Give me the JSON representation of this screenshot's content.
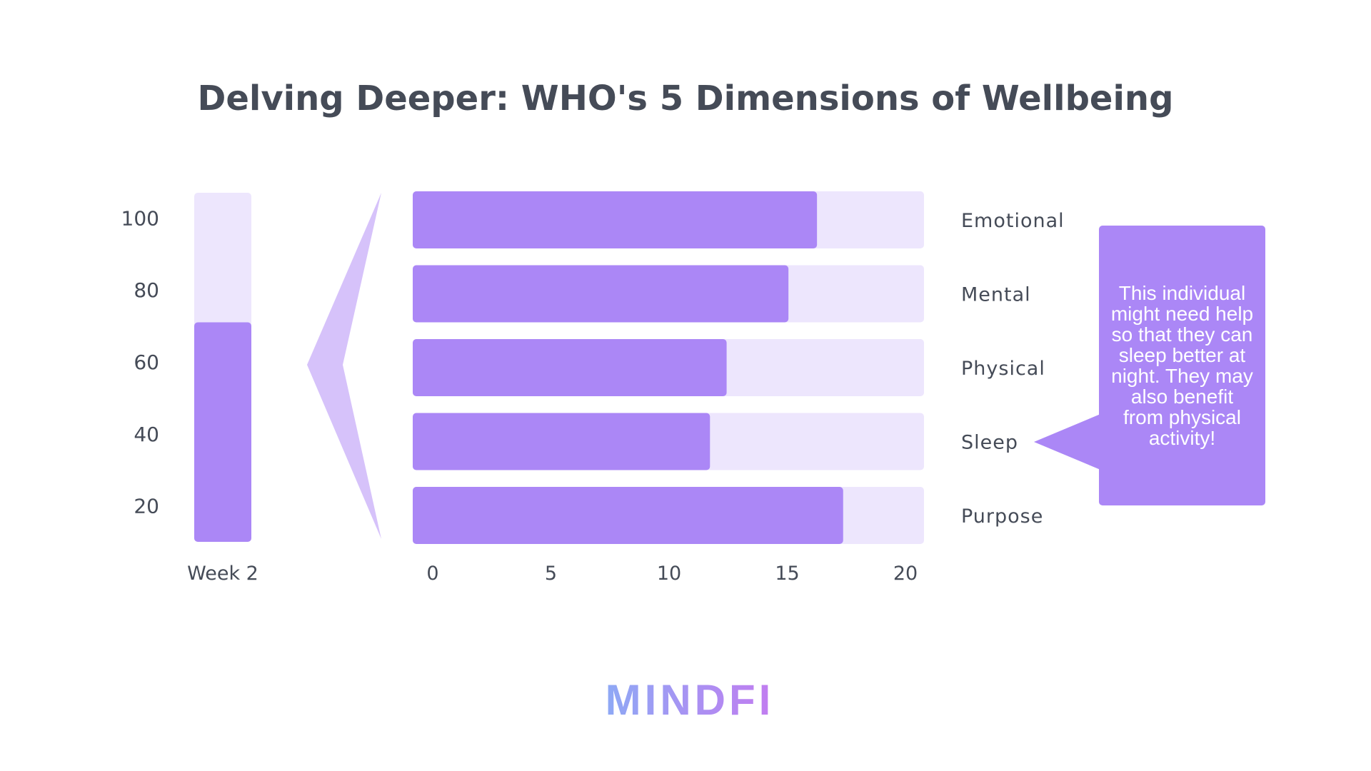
{
  "colors": {
    "bar_fill": "#ab87f6",
    "bar_track": "#ede6fd",
    "wedge": "#d6c2fa",
    "text": "#454b57",
    "logo_start": "#8ea9f5",
    "logo_end": "#c27cf0"
  },
  "title": "Delving Deeper: WHO's 5 Dimensions of Wellbeing",
  "callout": {
    "text": "This individual might need help so that they can sleep better at night. They may also benefit from physical activity!",
    "points_to": "Sleep"
  },
  "logo": {
    "text": "MINDFI"
  },
  "chart_data": [
    {
      "type": "bar",
      "orientation": "vertical",
      "categories": [
        "Week 2"
      ],
      "values": [
        71
      ],
      "ylim": [
        10,
        107
      ],
      "yticks": [
        "100",
        "80",
        "60",
        "40",
        "20"
      ],
      "title": "",
      "xlabel": "",
      "ylabel": ""
    },
    {
      "type": "bar",
      "orientation": "horizontal",
      "categories": [
        "Emotional",
        "Mental",
        "Physical",
        "Sleep",
        "Purpose"
      ],
      "values": [
        17,
        15.8,
        13.2,
        12.5,
        18.1
      ],
      "xlim": [
        0,
        21.5
      ],
      "xticks": [
        "0",
        "5",
        "10",
        "15",
        "20"
      ],
      "title": "",
      "xlabel": "",
      "ylabel": ""
    }
  ]
}
